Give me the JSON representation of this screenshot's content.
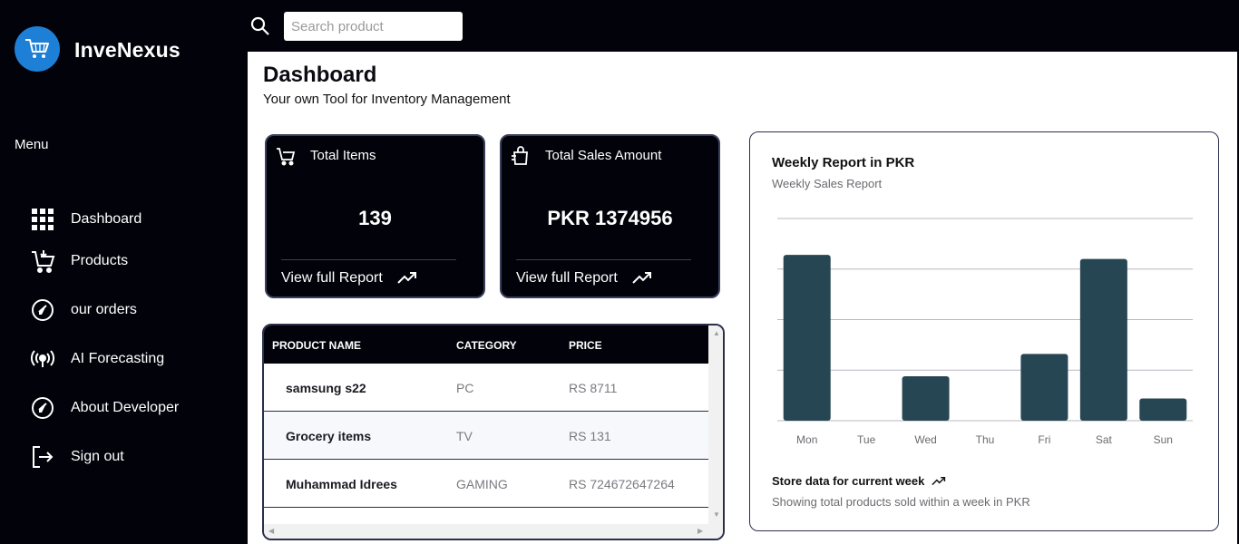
{
  "app": {
    "brand": "InveNexus"
  },
  "sidebar": {
    "menu_label": "Menu",
    "items": [
      {
        "label": "Dashboard",
        "icon": "grid-icon"
      },
      {
        "label": "Products",
        "icon": "cart-icon"
      },
      {
        "label": "our orders",
        "icon": "compass-icon"
      },
      {
        "label": "AI Forecasting",
        "icon": "broadcast-icon"
      },
      {
        "label": "About Developer",
        "icon": "compass-icon"
      },
      {
        "label": "Sign out",
        "icon": "sign-out-icon"
      }
    ]
  },
  "search": {
    "placeholder": "Search product"
  },
  "header": {
    "title": "Dashboard",
    "subtitle": "Your own Tool for Inventory Management"
  },
  "cards": [
    {
      "title": "Total Items",
      "value": "139",
      "link": "View full Report",
      "icon": "cart-icon"
    },
    {
      "title": "Total Sales Amount",
      "value": "PKR 1374956",
      "link": "View full Report",
      "icon": "shopping-bag-icon"
    }
  ],
  "table": {
    "columns": [
      "PRODUCT NAME",
      "CATEGORY",
      "PRICE"
    ],
    "rows": [
      {
        "name": "samsung s22",
        "category": "PC",
        "price": "RS 8711"
      },
      {
        "name": "Grocery items",
        "category": "TV",
        "price": "RS 131"
      },
      {
        "name": "Muhammad Idrees",
        "category": "GAMING",
        "price": "RS 724672647264"
      }
    ]
  },
  "chart_card": {
    "title": "Weekly Report in PKR",
    "subtitle": "Weekly Sales Report",
    "footer_title": "Store data for current week",
    "footer_desc": "Showing total products sold within a week in PKR"
  },
  "chart_data": {
    "type": "bar",
    "categories": [
      "Mon",
      "Tue",
      "Wed",
      "Thu",
      "Fri",
      "Sat",
      "Sun"
    ],
    "values": [
      0.82,
      0,
      0.22,
      0,
      0.33,
      0.8,
      0.11
    ],
    "ylim": [
      0,
      1
    ],
    "grid": true,
    "color": "#264653"
  },
  "colors": {
    "dark": "#02020a",
    "accent": "#1e7fd6",
    "bar": "#264653",
    "border": "#2b2f4a"
  }
}
